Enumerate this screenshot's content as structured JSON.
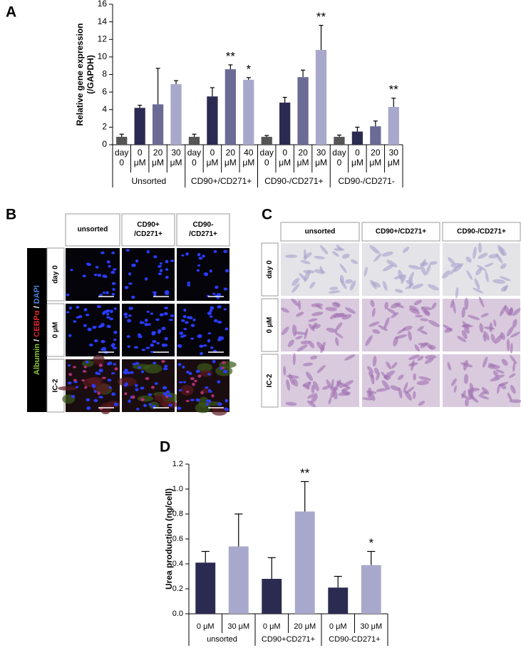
{
  "chart_data": [
    {
      "type": "bar",
      "panel": "A",
      "ylabel": [
        "Relative gene expression",
        "(/GAPDH)"
      ],
      "ylim": [
        0,
        16
      ],
      "yticks": [
        0,
        2,
        4,
        6,
        8,
        10,
        12,
        14,
        16
      ],
      "groups": [
        {
          "name": "Unsorted",
          "categories": [
            [
              "day",
              "0"
            ],
            [
              "0",
              "μM"
            ],
            [
              "20",
              "μM"
            ],
            [
              "30",
              "μM"
            ]
          ],
          "values": [
            0.9,
            4.2,
            4.6,
            6.9
          ],
          "errors": [
            0.3,
            0.3,
            4.1,
            0.4
          ],
          "colors": [
            "#555555",
            "#2b2b52",
            "#6b6b96",
            "#a8a8cc"
          ],
          "significance": [
            null,
            null,
            null,
            null
          ]
        },
        {
          "name": "CD90+/CD271+",
          "categories": [
            [
              "day",
              "0"
            ],
            [
              "0",
              "μM"
            ],
            [
              "20",
              "μM"
            ],
            [
              "40",
              "μM"
            ]
          ],
          "values": [
            0.9,
            5.5,
            8.6,
            7.4
          ],
          "errors": [
            0.3,
            1.0,
            0.5,
            0.25
          ],
          "colors": [
            "#555555",
            "#2b2b52",
            "#6b6b96",
            "#a8a8cc"
          ],
          "significance": [
            null,
            null,
            "**",
            "*"
          ]
        },
        {
          "name": "CD90-/CD271+",
          "categories": [
            [
              "day",
              "0"
            ],
            [
              "0",
              "μM"
            ],
            [
              "20",
              "μM"
            ],
            [
              "30",
              "μM"
            ]
          ],
          "values": [
            0.9,
            4.8,
            7.7,
            10.8
          ],
          "errors": [
            0.15,
            0.6,
            0.8,
            2.8
          ],
          "colors": [
            "#555555",
            "#2b2b52",
            "#6b6b96",
            "#a8a8cc"
          ],
          "significance": [
            null,
            null,
            null,
            "**"
          ]
        },
        {
          "name": "CD90-/CD271-",
          "categories": [
            [
              "day",
              "0"
            ],
            [
              "0",
              "μM"
            ],
            [
              "20",
              "μM"
            ],
            [
              "30",
              "μM"
            ]
          ],
          "values": [
            0.9,
            1.5,
            2.1,
            4.3
          ],
          "errors": [
            0.2,
            0.5,
            0.6,
            1.0
          ],
          "colors": [
            "#555555",
            "#2b2b52",
            "#6b6b96",
            "#a8a8cc"
          ],
          "significance": [
            null,
            null,
            null,
            "**"
          ]
        }
      ]
    },
    {
      "type": "bar",
      "panel": "D",
      "ylabel": [
        "Urea production (ng/cell)"
      ],
      "ylim": [
        0,
        1.2
      ],
      "yticks": [
        {
          "value": 0,
          "label": "0.0"
        },
        {
          "value": 0.2,
          "label": "0.2"
        },
        {
          "value": 0.4,
          "label": "0.4"
        },
        {
          "value": 0.6,
          "label": "0.6"
        },
        {
          "value": 0.8,
          "label": "0.8"
        },
        {
          "value": 1,
          "label": "1.0"
        },
        {
          "value": 1.2,
          "label": "1.2"
        }
      ],
      "groups": [
        {
          "name": "unsorted",
          "categories": [
            [
              "0 μM"
            ],
            [
              "30 μM"
            ]
          ],
          "values": [
            0.41,
            0.54
          ],
          "errors": [
            0.09,
            0.26
          ],
          "colors": [
            "#2b2b52",
            "#a8a8cc"
          ],
          "significance": [
            null,
            null
          ]
        },
        {
          "name": "CD90+CD271+",
          "categories": [
            [
              "0 μM"
            ],
            [
              "20 μM"
            ]
          ],
          "values": [
            0.28,
            0.82
          ],
          "errors": [
            0.17,
            0.24
          ],
          "colors": [
            "#2b2b52",
            "#a8a8cc"
          ],
          "significance": [
            null,
            "**"
          ]
        },
        {
          "name": "CD90-CD271+",
          "categories": [
            [
              "0 μM"
            ],
            [
              "30 μM"
            ]
          ],
          "values": [
            0.21,
            0.39
          ],
          "errors": [
            0.09,
            0.11
          ],
          "colors": [
            "#2b2b52",
            "#a8a8cc"
          ],
          "significance": [
            null,
            "*"
          ]
        }
      ]
    }
  ],
  "panel_b": {
    "panel": "B",
    "stain_label": [
      {
        "text": "Albumin",
        "color": "#8cc63f"
      },
      {
        "text": " / ",
        "color": "#ffffff"
      },
      {
        "text": "CEBPα",
        "color": "#e0262b"
      },
      {
        "text": " / ",
        "color": "#ffffff"
      },
      {
        "text": "DAPI",
        "color": "#4a7fd6"
      }
    ],
    "columns": [
      [
        "unsorted"
      ],
      [
        "CD90+",
        "/CD271+"
      ],
      [
        "CD90-",
        "/CD271+"
      ]
    ],
    "rows": [
      "day 0",
      "0 μM",
      "IC-2"
    ]
  },
  "panel_c": {
    "panel": "C",
    "columns": [
      "unsorted",
      "CD90+/CD271+",
      "CD90-/CD271+"
    ],
    "rows": [
      "day 0",
      "0 μM",
      "IC-2"
    ]
  }
}
